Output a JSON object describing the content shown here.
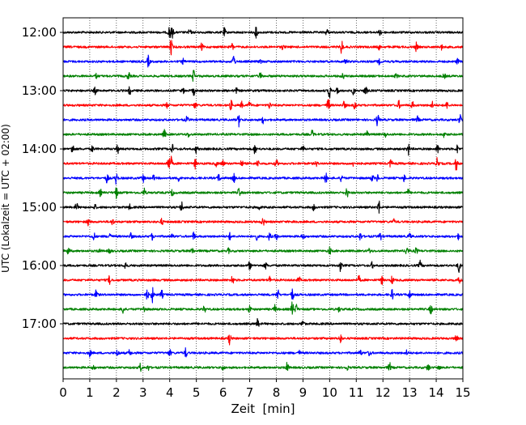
{
  "chart_data": {
    "type": "line",
    "title": "",
    "xlabel": "Zeit  [min]",
    "ylabel": "UTC (Lokalzeit = UTC + 02:00)",
    "xlim": [
      0,
      15
    ],
    "x_ticks": [
      0,
      1,
      2,
      3,
      4,
      5,
      6,
      7,
      8,
      9,
      10,
      11,
      12,
      13,
      14,
      15
    ],
    "y_tick_labels": [
      "12:00",
      "13:00",
      "14:00",
      "15:00",
      "16:00",
      "17:00"
    ],
    "grid": "x-dotted",
    "rows_per_hour": 4,
    "row_minutes": 15,
    "colors": [
      "#000000",
      "#ff0000",
      "#0000ff",
      "#008000"
    ],
    "series": [
      {
        "start": "12:00",
        "color": "#000000",
        "events": [
          [
            4.0,
            1.0
          ],
          [
            4.1,
            0.6
          ],
          [
            4.75,
            0.4
          ],
          [
            6.05,
            0.5
          ],
          [
            7.25,
            0.7
          ],
          [
            9.9,
            0.4
          ],
          [
            11.9,
            0.4
          ]
        ]
      },
      {
        "start": "12:15",
        "color": "#ff0000",
        "events": [
          [
            4.05,
            1.0
          ],
          [
            5.2,
            0.4
          ],
          [
            6.35,
            0.4
          ],
          [
            8.25,
            0.3
          ],
          [
            10.45,
            0.9
          ],
          [
            11.85,
            0.3
          ],
          [
            13.25,
            0.5
          ],
          [
            14.2,
            0.3
          ]
        ]
      },
      {
        "start": "12:30",
        "color": "#0000ff",
        "events": [
          [
            3.2,
            0.7
          ],
          [
            4.5,
            0.3
          ],
          [
            6.4,
            0.9
          ],
          [
            7.4,
            0.3
          ],
          [
            10.6,
            0.4
          ],
          [
            11.85,
            0.3
          ],
          [
            14.8,
            0.3
          ]
        ]
      },
      {
        "start": "12:45",
        "color": "#008000",
        "events": [
          [
            1.25,
            0.3
          ],
          [
            2.45,
            0.5
          ],
          [
            4.9,
            0.8
          ],
          [
            7.4,
            0.4
          ],
          [
            10.5,
            0.3
          ],
          [
            12.5,
            0.3
          ],
          [
            14.3,
            0.3
          ]
        ]
      },
      {
        "start": "13:00",
        "color": "#000000",
        "events": [
          [
            1.2,
            0.4
          ],
          [
            2.5,
            0.5
          ],
          [
            4.5,
            0.3
          ],
          [
            4.9,
            0.5
          ],
          [
            6.5,
            0.3
          ],
          [
            10.0,
            1.0
          ],
          [
            10.3,
            0.4
          ],
          [
            10.9,
            0.5
          ],
          [
            11.35,
            0.7
          ]
        ]
      },
      {
        "start": "13:15",
        "color": "#ff0000",
        "events": [
          [
            3.9,
            0.3
          ],
          [
            4.95,
            0.4
          ],
          [
            6.3,
            0.6
          ],
          [
            6.7,
            0.4
          ],
          [
            7.0,
            0.5
          ],
          [
            7.75,
            0.4
          ],
          [
            9.95,
            1.0
          ],
          [
            10.55,
            0.5
          ],
          [
            10.95,
            0.5
          ],
          [
            12.6,
            0.5
          ],
          [
            13.1,
            0.5
          ],
          [
            13.85,
            0.4
          ],
          [
            14.4,
            0.4
          ]
        ]
      },
      {
        "start": "13:30",
        "color": "#0000ff",
        "events": [
          [
            4.65,
            0.4
          ],
          [
            6.6,
            0.8
          ],
          [
            7.5,
            0.4
          ],
          [
            11.8,
            0.8
          ],
          [
            13.3,
            0.4
          ],
          [
            14.9,
            0.7
          ]
        ]
      },
      {
        "start": "13:45",
        "color": "#008000",
        "events": [
          [
            3.8,
            0.6
          ],
          [
            4.7,
            0.3
          ],
          [
            9.35,
            0.5
          ],
          [
            11.4,
            0.4
          ],
          [
            12.1,
            0.3
          ],
          [
            14.3,
            0.3
          ]
        ]
      },
      {
        "start": "14:00",
        "color": "#000000",
        "events": [
          [
            0.35,
            0.7
          ],
          [
            1.1,
            0.4
          ],
          [
            2.05,
            0.5
          ],
          [
            4.1,
            0.5
          ],
          [
            5.0,
            0.5
          ],
          [
            7.2,
            0.6
          ],
          [
            9.0,
            0.4
          ],
          [
            12.95,
            0.8
          ],
          [
            14.05,
            0.5
          ],
          [
            14.8,
            0.5
          ]
        ]
      },
      {
        "start": "14:15",
        "color": "#ff0000",
        "events": [
          [
            3.95,
            1.0
          ],
          [
            4.05,
            0.8
          ],
          [
            4.95,
            0.6
          ],
          [
            5.75,
            0.3
          ],
          [
            6.0,
            0.4
          ],
          [
            6.7,
            0.4
          ],
          [
            7.3,
            0.4
          ],
          [
            8.0,
            0.5
          ],
          [
            9.5,
            0.3
          ],
          [
            10.9,
            0.3
          ],
          [
            12.3,
            0.6
          ],
          [
            14.05,
            0.8
          ],
          [
            14.75,
            0.8
          ]
        ]
      },
      {
        "start": "14:30",
        "color": "#0000ff",
        "events": [
          [
            1.65,
            0.6
          ],
          [
            2.0,
            0.8
          ],
          [
            3.0,
            0.5
          ],
          [
            3.4,
            0.3
          ],
          [
            4.35,
            0.4
          ],
          [
            5.85,
            0.5
          ],
          [
            6.4,
            0.6
          ],
          [
            9.85,
            0.7
          ],
          [
            10.45,
            0.5
          ],
          [
            11.6,
            0.4
          ],
          [
            11.8,
            0.4
          ],
          [
            12.8,
            0.4
          ]
        ]
      },
      {
        "start": "14:45",
        "color": "#008000",
        "events": [
          [
            1.4,
            0.4
          ],
          [
            2.0,
            0.7
          ],
          [
            3.05,
            0.5
          ],
          [
            4.1,
            0.4
          ],
          [
            6.6,
            0.6
          ],
          [
            10.65,
            0.6
          ],
          [
            12.95,
            0.4
          ]
        ]
      },
      {
        "start": "15:00",
        "color": "#000000",
        "events": [
          [
            0.5,
            0.6
          ],
          [
            1.2,
            0.3
          ],
          [
            2.5,
            0.3
          ],
          [
            4.45,
            0.7
          ],
          [
            7.35,
            0.3
          ],
          [
            9.4,
            0.4
          ],
          [
            11.85,
            0.8
          ]
        ]
      },
      {
        "start": "15:15",
        "color": "#ff0000",
        "events": [
          [
            0.95,
            0.5
          ],
          [
            1.85,
            0.4
          ],
          [
            3.7,
            0.4
          ],
          [
            7.5,
            0.6
          ],
          [
            8.7,
            0.3
          ],
          [
            12.4,
            0.3
          ]
        ]
      },
      {
        "start": "15:30",
        "color": "#0000ff",
        "events": [
          [
            1.15,
            0.5
          ],
          [
            1.75,
            0.6
          ],
          [
            2.55,
            0.4
          ],
          [
            3.35,
            0.4
          ],
          [
            4.1,
            0.3
          ],
          [
            4.9,
            0.5
          ],
          [
            6.25,
            0.4
          ],
          [
            7.25,
            0.4
          ],
          [
            7.75,
            0.5
          ],
          [
            8.0,
            0.4
          ],
          [
            9.0,
            0.4
          ],
          [
            11.15,
            0.5
          ],
          [
            11.9,
            0.5
          ],
          [
            13.0,
            0.4
          ],
          [
            14.85,
            0.4
          ]
        ]
      },
      {
        "start": "15:45",
        "color": "#008000",
        "events": [
          [
            0.2,
            0.5
          ],
          [
            1.35,
            0.3
          ],
          [
            1.75,
            0.3
          ],
          [
            4.85,
            0.4
          ],
          [
            6.2,
            0.3
          ],
          [
            10.0,
            0.5
          ],
          [
            11.5,
            0.3
          ],
          [
            12.9,
            0.7
          ],
          [
            13.25,
            0.4
          ]
        ]
      },
      {
        "start": "16:00",
        "color": "#000000",
        "events": [
          [
            2.35,
            0.5
          ],
          [
            7.0,
            0.5
          ],
          [
            7.6,
            0.4
          ],
          [
            10.4,
            0.7
          ],
          [
            11.6,
            0.4
          ],
          [
            13.4,
            0.6
          ],
          [
            14.85,
            0.8
          ]
        ]
      },
      {
        "start": "16:15",
        "color": "#ff0000",
        "events": [
          [
            1.75,
            0.6
          ],
          [
            6.35,
            0.6
          ],
          [
            7.75,
            0.4
          ],
          [
            8.85,
            0.4
          ],
          [
            11.1,
            0.5
          ],
          [
            11.95,
            0.6
          ],
          [
            12.35,
            0.5
          ],
          [
            14.85,
            0.5
          ]
        ]
      },
      {
        "start": "16:30",
        "color": "#0000ff",
        "events": [
          [
            1.25,
            0.6
          ],
          [
            3.15,
            0.7
          ],
          [
            3.35,
            0.9
          ],
          [
            3.7,
            0.5
          ],
          [
            8.05,
            0.7
          ],
          [
            8.6,
            0.8
          ],
          [
            12.35,
            0.6
          ],
          [
            13.0,
            0.6
          ]
        ]
      },
      {
        "start": "16:45",
        "color": "#008000",
        "events": [
          [
            2.25,
            0.6
          ],
          [
            3.05,
            0.4
          ],
          [
            5.3,
            0.4
          ],
          [
            7.0,
            0.5
          ],
          [
            7.95,
            0.5
          ],
          [
            8.6,
            0.9
          ],
          [
            8.75,
            0.6
          ],
          [
            10.35,
            0.3
          ],
          [
            13.8,
            0.6
          ]
        ]
      },
      {
        "start": "17:00",
        "color": "#000000",
        "events": [
          [
            7.3,
            0.6
          ],
          [
            9.0,
            0.5
          ]
        ]
      },
      {
        "start": "17:15",
        "color": "#ff0000",
        "events": [
          [
            6.25,
            0.7
          ],
          [
            10.4,
            0.6
          ],
          [
            14.75,
            0.5
          ]
        ]
      },
      {
        "start": "17:30",
        "color": "#0000ff",
        "events": [
          [
            1.0,
            0.4
          ],
          [
            2.05,
            0.5
          ],
          [
            2.5,
            0.4
          ],
          [
            4.0,
            0.4
          ],
          [
            4.6,
            0.6
          ],
          [
            8.85,
            0.3
          ],
          [
            11.15,
            0.4
          ],
          [
            11.5,
            0.4
          ],
          [
            12.9,
            0.3
          ]
        ]
      },
      {
        "start": "17:45",
        "color": "#008000",
        "events": [
          [
            1.15,
            0.3
          ],
          [
            2.9,
            0.5
          ],
          [
            3.2,
            0.3
          ],
          [
            6.0,
            0.3
          ],
          [
            8.4,
            0.8
          ],
          [
            10.65,
            0.3
          ],
          [
            12.25,
            0.6
          ],
          [
            13.7,
            0.5
          ],
          [
            14.1,
            0.3
          ]
        ]
      }
    ]
  }
}
